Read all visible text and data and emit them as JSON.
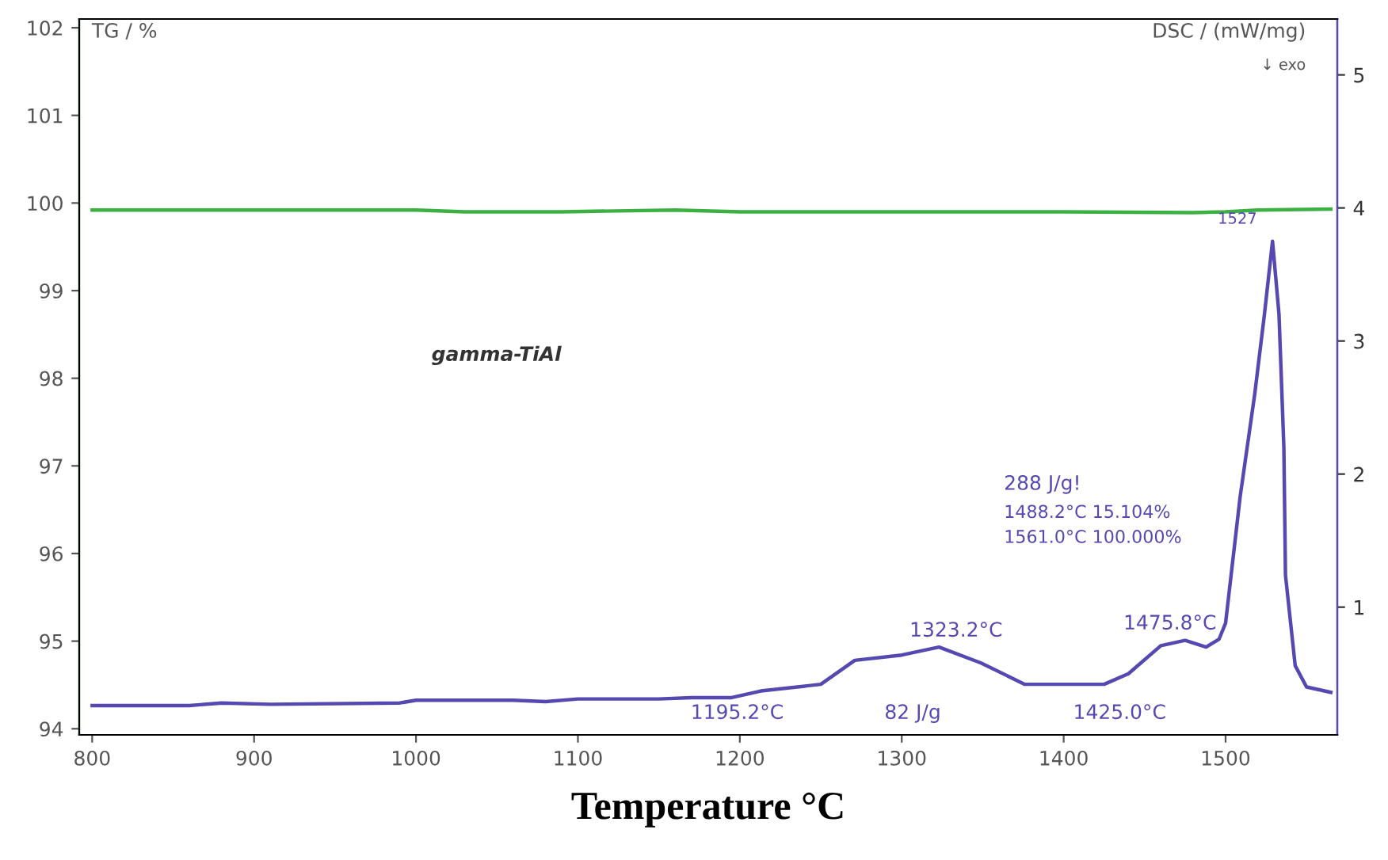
{
  "chart_data": {
    "type": "line",
    "xlabel": "Temperature °C",
    "ylabel": "TG / %",
    "y2label": "DSC / (mW/mg)",
    "xlim": [
      792,
      1569
    ],
    "xticks": [
      800,
      900,
      1000,
      1100,
      1200,
      1300,
      1400,
      1500
    ],
    "ylim": [
      93.93,
      102.1
    ],
    "yticks": [
      94,
      95,
      96,
      97,
      98,
      99,
      100,
      101,
      102
    ],
    "y2lim": [
      0.04,
      5.42
    ],
    "y2ticks": [
      1,
      2,
      3,
      4,
      5
    ],
    "grid": false,
    "legend": false,
    "series": [
      {
        "color": "#3cb043",
        "x": [
          800,
          1000,
          1030,
          1090,
          1160,
          1200,
          1300,
          1400,
          1480,
          1500,
          1520,
          1565
        ],
        "values": [
          99.92,
          99.92,
          99.9,
          99.9,
          99.92,
          99.9,
          99.9,
          99.9,
          99.89,
          99.9,
          99.92,
          99.93
        ]
      },
      {
        "color": "#5548b0",
        "axis": "y2",
        "x": [
          800,
          860,
          880,
          910,
          990,
          1000,
          1060,
          1080,
          1100,
          1150,
          1170,
          1195,
          1213,
          1250,
          1271,
          1300,
          1323,
          1349,
          1376,
          1400,
          1425,
          1440,
          1460,
          1475,
          1488,
          1496,
          1500,
          1509,
          1518,
          1524,
          1529,
          1533,
          1536,
          1537,
          1543,
          1550,
          1565
        ],
        "values": [
          0.26,
          0.26,
          0.28,
          0.27,
          0.28,
          0.3,
          0.3,
          0.29,
          0.31,
          0.31,
          0.32,
          0.32,
          0.37,
          0.42,
          0.6,
          0.64,
          0.7,
          0.58,
          0.42,
          0.42,
          0.42,
          0.5,
          0.71,
          0.75,
          0.7,
          0.76,
          0.88,
          1.83,
          2.6,
          3.2,
          3.75,
          3.2,
          2.2,
          1.24,
          0.56,
          0.4,
          0.36
        ]
      }
    ],
    "annotations": [
      "1195.2°C",
      "1323.2°C",
      "1425.0°C",
      "1475.8°C",
      "1527",
      "82 J/g",
      "288 J/g!",
      "1488.2°C 15.104%",
      "1561.0°C 100.000%",
      "gamma-TiAl",
      "↓ exo"
    ]
  }
}
